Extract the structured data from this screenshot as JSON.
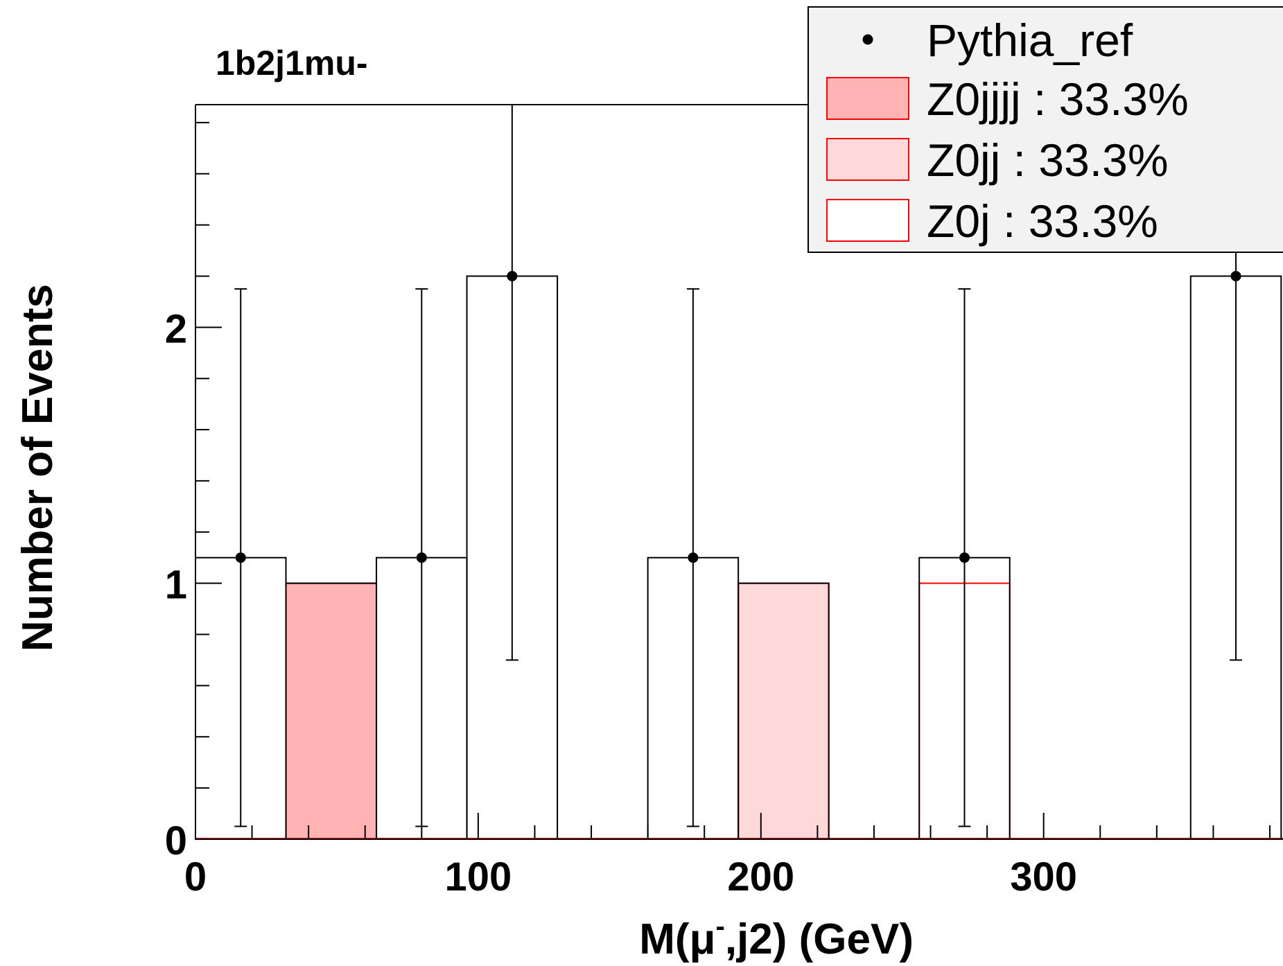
{
  "chart_data": {
    "type": "bar",
    "title": "1b2j1mu-",
    "xlabel_main": "M(μ",
    "xlabel_sup": "-",
    "xlabel_tail": ",j2) (GeV)",
    "ylabel": "Number of Events",
    "xlim": [
      0,
      380
    ],
    "ylim": [
      0,
      2.87
    ],
    "x_ticks": [
      0,
      100,
      200,
      300
    ],
    "x_tick_labels": [
      "0",
      "100",
      "200",
      "300"
    ],
    "y_ticks": [
      0,
      1,
      2
    ],
    "y_tick_labels": [
      "0",
      "1",
      "2"
    ],
    "bin_edges": [
      0,
      32,
      64,
      96,
      128,
      160,
      192,
      224,
      256,
      288,
      320,
      352,
      384
    ],
    "stack_total": [
      1.1,
      1,
      1.1,
      2.2,
      0,
      1.1,
      1,
      0,
      1.1,
      0,
      0,
      2.2
    ],
    "stack_components": [
      {
        "name": "Z0jjjj : 33.3%",
        "fill": "#ffb3b3",
        "edge": "#ff0000",
        "values": [
          0,
          1,
          0,
          0,
          0,
          0,
          0,
          0,
          0,
          0,
          0,
          0
        ]
      },
      {
        "name": "Z0jj : 33.3%",
        "fill": "#ffd9d9",
        "edge": "#ff0000",
        "values": [
          0,
          0,
          0,
          0,
          0,
          0,
          1,
          0,
          0,
          0,
          0,
          0
        ]
      },
      {
        "name": "Z0j : 33.3%",
        "fill": "#ffffff",
        "edge": "#ff0000",
        "values": [
          0,
          0,
          0,
          0,
          0,
          0,
          0,
          0,
          1,
          0,
          0,
          0
        ]
      }
    ],
    "data_series": {
      "name": "Pythia_ref",
      "points": [
        {
          "x": 16,
          "y": 1.1,
          "ylow": 0.05,
          "yhigh": 2.15
        },
        {
          "x": 80,
          "y": 1.1,
          "ylow": 0.05,
          "yhigh": 2.15
        },
        {
          "x": 112,
          "y": 2.2,
          "ylow": 0.7,
          "yhigh": 2.87
        },
        {
          "x": 176,
          "y": 1.1,
          "ylow": 0.05,
          "yhigh": 2.15
        },
        {
          "x": 272,
          "y": 1.1,
          "ylow": 0.05,
          "yhigh": 2.15
        },
        {
          "x": 368,
          "y": 2.2,
          "ylow": 0.7,
          "yhigh": 2.87
        }
      ]
    },
    "legend": {
      "placement": "top-right",
      "entries": [
        {
          "label": "Pythia_ref",
          "kind": "marker"
        },
        {
          "label": "Z0jjjj : 33.3%",
          "kind": "box",
          "fill": "#ffb3b3",
          "edge": "#ff0000"
        },
        {
          "label": "Z0jj : 33.3%",
          "kind": "box",
          "fill": "#ffd9d9",
          "edge": "#ff0000"
        },
        {
          "label": "Z0j : 33.3%",
          "kind": "box",
          "fill": "#ffffff",
          "edge": "#ff0000"
        }
      ]
    },
    "colors": {
      "axis": "#000000",
      "legend_bg": "#f2f2f2",
      "stack_edge": "#ff0000"
    }
  }
}
